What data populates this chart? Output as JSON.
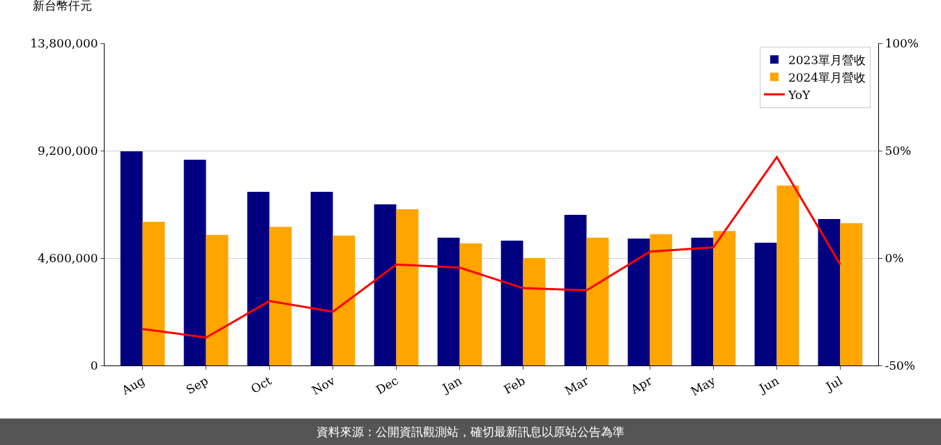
{
  "chart_data": {
    "type": "bar",
    "ylabel": "新台幣仟元",
    "categories": [
      "Aug",
      "Sep",
      "Oct",
      "Nov",
      "Dec",
      "Jan",
      "Feb",
      "Mar",
      "Apr",
      "May",
      "Jun",
      "Jul"
    ],
    "series": [
      {
        "name": "2023單月營收",
        "color": "#000080",
        "values": [
          9170000,
          8810000,
          7440000,
          7440000,
          6900000,
          5470000,
          5350000,
          6450000,
          5440000,
          5470000,
          5260000,
          6270000
        ]
      },
      {
        "name": "2024單月營收",
        "color": "#ffa500",
        "values": [
          6150000,
          5590000,
          5940000,
          5560000,
          6690000,
          5230000,
          4600000,
          5470000,
          5620000,
          5760000,
          7710000,
          6090000
        ]
      },
      {
        "name": "YoY",
        "type": "line",
        "axis": "y2",
        "color": "#ff0000",
        "values": [
          -33,
          -37,
          -20,
          -25,
          -3,
          -4.5,
          -14,
          -15,
          3,
          5,
          47,
          -3
        ]
      }
    ],
    "ylim": [
      0,
      13800000
    ],
    "yticks": [
      0,
      {
        "value": 4600000,
        "label": "4,600,000"
      },
      {
        "value": 9200000,
        "label": "9,200,000"
      },
      {
        "value": 13800000,
        "label": "13,800,000"
      }
    ],
    "y2lim": [
      -50,
      100
    ],
    "y2ticks": [
      {
        "value": -50,
        "label": "-50%"
      },
      {
        "value": 0,
        "label": "0%"
      },
      {
        "value": 50,
        "label": "50%"
      },
      {
        "value": 100,
        "label": "100%"
      }
    ],
    "grid": "y",
    "legend": "top right",
    "marker": "none",
    "annotations": [
      "資料來源：公開資訊觀測站，確切最新訊息以原站公告為準"
    ]
  }
}
